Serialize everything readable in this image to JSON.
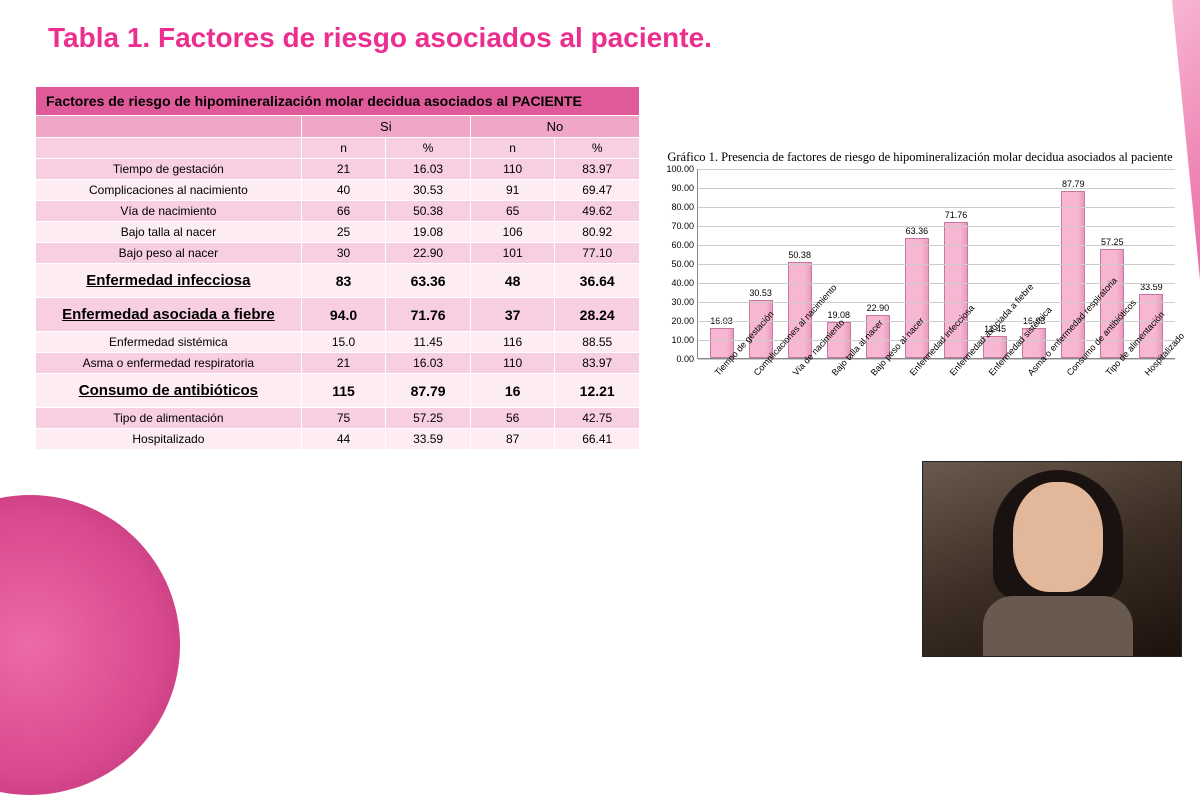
{
  "title": "Tabla 1. Factores de riesgo asociados al paciente.",
  "table": {
    "header_main": "Factores de riesgo de hipomineralización molar decidua asociados al PACIENTE",
    "col_si": "Si",
    "col_no": "No",
    "sub_n": "n",
    "sub_pct": "%",
    "rows": [
      {
        "label": "Tiempo de gestación",
        "si_n": "21",
        "si_p": "16.03",
        "no_n": "110",
        "no_p": "83.97",
        "big": false
      },
      {
        "label": "Complicaciones al nacimiento",
        "si_n": "40",
        "si_p": "30.53",
        "no_n": "91",
        "no_p": "69.47",
        "big": false
      },
      {
        "label": "Vía de nacimiento",
        "si_n": "66",
        "si_p": "50.38",
        "no_n": "65",
        "no_p": "49.62",
        "big": false
      },
      {
        "label": "Bajo talla al nacer",
        "si_n": "25",
        "si_p": "19.08",
        "no_n": "106",
        "no_p": "80.92",
        "big": false
      },
      {
        "label": "Bajo peso al nacer",
        "si_n": "30",
        "si_p": "22.90",
        "no_n": "101",
        "no_p": "77.10",
        "big": false
      },
      {
        "label": "Enfermedad infecciosa",
        "si_n": "83",
        "si_p": "63.36",
        "no_n": "48",
        "no_p": "36.64",
        "big": true
      },
      {
        "label": "Enfermedad asociada a fiebre",
        "si_n": "94.0",
        "si_p": "71.76",
        "no_n": "37",
        "no_p": "28.24",
        "big": true
      },
      {
        "label": "Enfermedad sistémica",
        "si_n": "15.0",
        "si_p": "11.45",
        "no_n": "116",
        "no_p": "88.55",
        "big": false
      },
      {
        "label": "Asma o enfermedad respiratoria",
        "si_n": "21",
        "si_p": "16.03",
        "no_n": "110",
        "no_p": "83.97",
        "big": false
      },
      {
        "label": "Consumo de antibióticos",
        "si_n": "115",
        "si_p": "87.79",
        "no_n": "16",
        "no_p": "12.21",
        "big": true
      },
      {
        "label": "Tipo de alimentación",
        "si_n": "75",
        "si_p": "57.25",
        "no_n": "56",
        "no_p": "42.75",
        "big": false
      },
      {
        "label": "Hospitalizado",
        "si_n": "44",
        "si_p": "33.59",
        "no_n": "87",
        "no_p": "66.41",
        "big": false
      }
    ]
  },
  "chart": {
    "type": "bar",
    "title": "Gráfico 1. Presencia de factores de riesgo de hipomineralización molar decidua asociados al paciente",
    "ylim": [
      0,
      100
    ],
    "ytick_step": 10,
    "yticks": [
      "0.00",
      "10.00",
      "20.00",
      "30.00",
      "40.00",
      "50.00",
      "60.00",
      "70.00",
      "80.00",
      "90.00",
      "100.00"
    ],
    "bar_fill": "#f7b6d2",
    "bar_border": "#c47aa0",
    "grid_color": "#cccccc",
    "axis_color": "#888888",
    "background_color": "#ffffff",
    "label_fontsize": 9,
    "title_fontsize": 13,
    "categories": [
      "Tiempo de gestación",
      "Complicaciones al nacimiento",
      "Vía de nacimiento",
      "Bajo talla al nacer",
      "Bajo peso al nacer",
      "Enfermedad infecciosa",
      "Enfermedad asociada a fiebre",
      "Enfermedad sistémica",
      "Asma o enfermedad respiratoria",
      "Consumo de antibióticos",
      "Tipo de alimentación",
      "Hospitalizado"
    ],
    "values": [
      16.03,
      30.53,
      50.38,
      19.08,
      22.9,
      63.36,
      71.76,
      11.45,
      16.03,
      87.79,
      57.25,
      33.59
    ],
    "value_labels": [
      "16.03",
      "30.53",
      "50.38",
      "19.08",
      "22.90",
      "63.36",
      "71.76",
      "11.45",
      "16.03",
      "87.79",
      "57.25",
      "33.59"
    ]
  },
  "colors": {
    "title": "#ec2e8f",
    "table_header": "#e05a99",
    "table_sub1": "#efa6c7",
    "table_sub2": "#f7cfe1",
    "row_alt_a": "#f7cfe1",
    "row_alt_b": "#fdecf3"
  }
}
